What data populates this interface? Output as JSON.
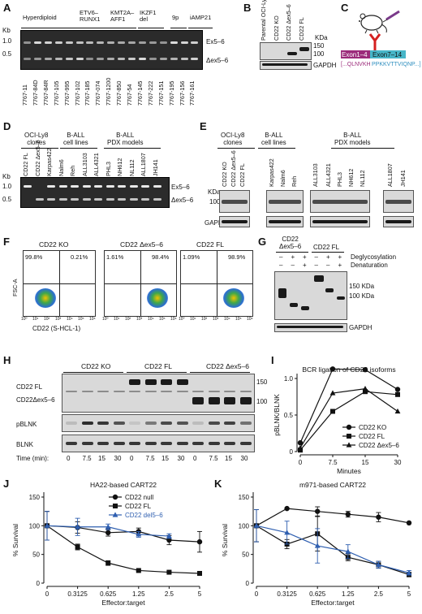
{
  "panels": {
    "A": {
      "letter": "A",
      "groups": [
        "Hyperdiploid",
        "ETV6–\nRUNX1",
        "KMT2A–\nAFF1",
        "IKZF1\ndel",
        "9p",
        "iAMP21"
      ],
      "kb_label": "Kb",
      "markers": [
        "1.0",
        "0.5"
      ],
      "band_labels": [
        "Ex5–6",
        "Δex5–6"
      ],
      "lanes": [
        "7767-11",
        "7767-84D",
        "7767-84R",
        "7767-105",
        "7767-995",
        "7767-102",
        "7767-185",
        "7767-074",
        "7767-1200",
        "7767-850",
        "7767-54",
        "7767-145",
        "7767-222",
        "7767-151",
        "7767-195",
        "7767-156",
        "7767-161"
      ]
    },
    "B": {
      "letter": "B",
      "lanes": [
        "Parental OCI-Ly8",
        "CD22 KO",
        "CD22 Δex5–6",
        "CD22 FL"
      ],
      "kda_label": "KDa",
      "markers": [
        "150",
        "100"
      ],
      "loading": "GAPDH"
    },
    "C": {
      "letter": "C",
      "exon_left": "Exon1–4",
      "exon_right": "Exon7–14",
      "sequence_left": "[...QLNVKH",
      "sequence_right": "PPKKVTTVIQNP...]"
    },
    "D": {
      "letter": "D",
      "groups": [
        "OCI-Ly8\nclones",
        "B-ALL\ncell lines",
        "B-ALL\nPDX models"
      ],
      "kb_label": "Kb",
      "markers": [
        "1.0",
        "0.5"
      ],
      "band_labels": [
        "Ex5–6",
        "Δex5–6"
      ],
      "lanes": [
        "CD22 FL",
        "CD22 Δex5–6",
        "Karpas422",
        "Nalm6",
        "Reh",
        "ALL3103",
        "ALL4321",
        "PHL3",
        "NH612",
        "NL112",
        "ALL1807",
        "JH141"
      ]
    },
    "E": {
      "letter": "E",
      "groups": [
        "OCI-Ly8\nclones",
        "B-ALL\ncell lines",
        "B-ALL\nPDX models"
      ],
      "kda_label": "KDa",
      "marker": "100",
      "loading": "GAPDH",
      "lanes": [
        "CD22 KO",
        "CD22 Δex5–6",
        "CD22 FL",
        "Karpas422",
        "Nalm6",
        "Reh",
        "ALL3103",
        "ALL4321",
        "PHL3",
        "NH612",
        "NL112",
        "ALL1807",
        "JH141"
      ]
    },
    "F": {
      "letter": "F",
      "plots": [
        {
          "title": "CD22 KO",
          "left_pct": "99.8%",
          "right_pct": "0.21%"
        },
        {
          "title": "CD22 Δex5–6",
          "left_pct": "1.61%",
          "right_pct": "98.4%"
        },
        {
          "title": "CD22 FL",
          "left_pct": "1.09%",
          "right_pct": "98.9%"
        }
      ],
      "ylabel": "FSC-A",
      "xlabel": "CD22 (S-HCL-1)",
      "ticks": [
        "10⁰",
        "10¹",
        "10²",
        "10³",
        "10⁴",
        "10⁵",
        "10⁶"
      ]
    },
    "G": {
      "letter": "G",
      "groups": [
        "CD22\nΔex5–6",
        "CD22 FL"
      ],
      "rows": [
        {
          "label": "Deglycosylation",
          "signs": [
            "–",
            "+",
            "+",
            "–",
            "+",
            "+"
          ]
        },
        {
          "label": "Denaturation",
          "signs": [
            "–",
            "–",
            "+",
            "–",
            "–",
            "+"
          ]
        }
      ],
      "markers": [
        "150 KDa",
        "100 KDa"
      ],
      "loading": "GAPDH"
    },
    "H": {
      "letter": "H",
      "groups": [
        "CD22 KO",
        "CD22 FL",
        "CD22 Δex5–6"
      ],
      "row_labels": [
        "CD22 FL",
        "CD22Δex5–6",
        "pBLNK",
        "BLNK"
      ],
      "markers": [
        "150",
        "100"
      ],
      "time_label": "Time (min):",
      "times": [
        "0",
        "7.5",
        "15",
        "30",
        "0",
        "7.5",
        "15",
        "30",
        "0",
        "7.5",
        "15",
        "30"
      ]
    }
  },
  "chart_data": [
    {
      "panel": "I",
      "type": "line",
      "title": "BCR ligation of CD22 isoforms",
      "xlabel": "Minutes",
      "ylabel": "pBLNK/BLNK",
      "x_ticks": [
        "0",
        "7.5",
        "15",
        "30"
      ],
      "ylim": [
        0,
        1.0
      ],
      "y_ticks": [
        "0",
        "0.5",
        "1.0"
      ],
      "series": [
        {
          "name": "CD22 KO",
          "marker": "circle",
          "values": [
            0.12,
            1.13,
            1.12,
            0.85
          ]
        },
        {
          "name": "CD22 FL",
          "marker": "square",
          "values": [
            0.02,
            0.55,
            0.82,
            0.78
          ]
        },
        {
          "name": "CD22 Δex5–6",
          "marker": "triangle",
          "values": [
            0.05,
            0.8,
            0.86,
            0.55
          ]
        }
      ],
      "legend": "bottom-right"
    },
    {
      "panel": "J",
      "type": "line",
      "title": "HA22-based CART22",
      "xlabel": "Effector:target",
      "ylabel": "% Survival",
      "x_ticks": [
        "0",
        "0.3125",
        "0.625",
        "1.25",
        "2.5",
        "5"
      ],
      "ylim": [
        0,
        150
      ],
      "y_ticks": [
        "0",
        "50",
        "100",
        "150"
      ],
      "series": [
        {
          "name": "CD22 null",
          "marker": "circle",
          "color": "#111111",
          "values": [
            100,
            97,
            88,
            90,
            75,
            72
          ],
          "errors": [
            25,
            10,
            6,
            6,
            8,
            18
          ]
        },
        {
          "name": "CD22 FL",
          "marker": "square",
          "color": "#111111",
          "values": [
            100,
            63,
            35,
            22,
            19,
            17
          ],
          "errors": [
            25,
            5,
            4,
            2,
            2,
            2
          ]
        },
        {
          "name": "CD22 del5–6",
          "marker": "triangle",
          "color": "#2f5fb0",
          "values": [
            100,
            98,
            98,
            85,
            82,
            null
          ],
          "errors": [
            25,
            15,
            5,
            5,
            4,
            null
          ]
        }
      ],
      "legend": "top-right"
    },
    {
      "panel": "K",
      "type": "line",
      "title": "m971-based CART22",
      "xlabel": "Effector:target",
      "ylabel": "% Survival",
      "x_ticks": [
        "0",
        "0.3125",
        "0.625",
        "1.25",
        "2.5",
        "5"
      ],
      "ylim": [
        0,
        150
      ],
      "y_ticks": [
        "0",
        "50",
        "100",
        "150"
      ],
      "series": [
        {
          "name": "CD22 null",
          "marker": "circle",
          "color": "#111111",
          "values": [
            100,
            130,
            125,
            120,
            115,
            105
          ],
          "errors": [
            28,
            0,
            8,
            5,
            8,
            0
          ]
        },
        {
          "name": "CD22 FL",
          "marker": "square",
          "color": "#111111",
          "values": [
            100,
            68,
            86,
            45,
            32,
            15
          ],
          "errors": [
            28,
            8,
            30,
            6,
            6,
            4
          ]
        },
        {
          "name": "CD22 del5–6",
          "marker": "triangle",
          "color": "#2f5fb0",
          "values": [
            100,
            88,
            65,
            55,
            32,
            18
          ],
          "errors": [
            28,
            20,
            30,
            12,
            6,
            4
          ]
        }
      ],
      "legend": "none"
    }
  ]
}
